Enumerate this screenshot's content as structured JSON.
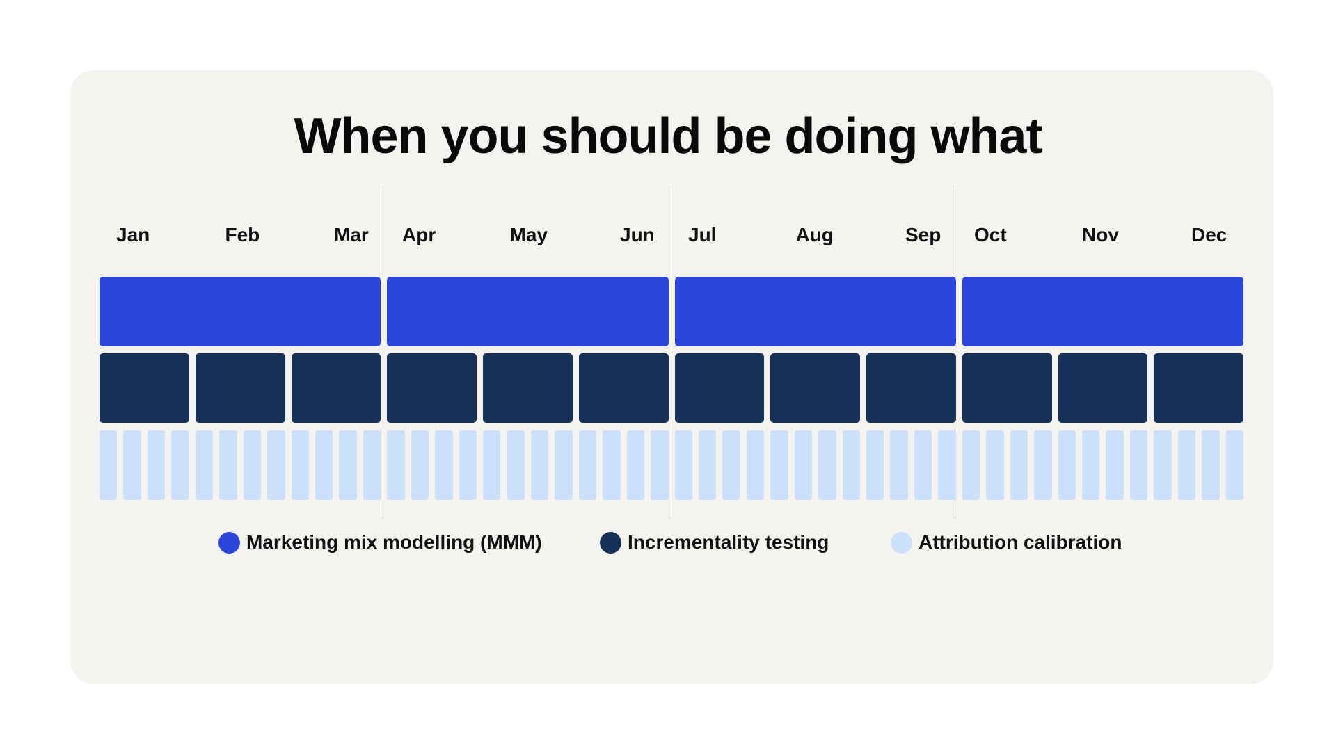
{
  "title": "When you should be doing what",
  "months": [
    "Jan",
    "Feb",
    "Mar",
    "Apr",
    "May",
    "Jun",
    "Jul",
    "Aug",
    "Sep",
    "Oct",
    "Nov",
    "Dec"
  ],
  "rows": [
    {
      "key": "mmm",
      "label": "Marketing mix modelling (MMM)",
      "cadence": "quarterly",
      "blocks_per_year": 4,
      "color": "#2a46dc"
    },
    {
      "key": "inc",
      "label": "Incrementality testing",
      "cadence": "monthly",
      "blocks_per_year": 12,
      "color": "#153157"
    },
    {
      "key": "att",
      "label": "Attribution calibration",
      "cadence": "weekly",
      "blocks_per_year": 48,
      "color": "#cbe0fb"
    }
  ],
  "legend": [
    {
      "label": "Marketing mix modelling (MMM)",
      "color": "#2a46dc"
    },
    {
      "label": "Incrementality testing",
      "color": "#153157"
    },
    {
      "label": "Attribution calibration",
      "color": "#cbe0fb"
    }
  ],
  "colors": {
    "background": "#ffffff",
    "card": "#f4f3f0",
    "text": "#0a0a0a",
    "divider": "#c9c8c4"
  }
}
